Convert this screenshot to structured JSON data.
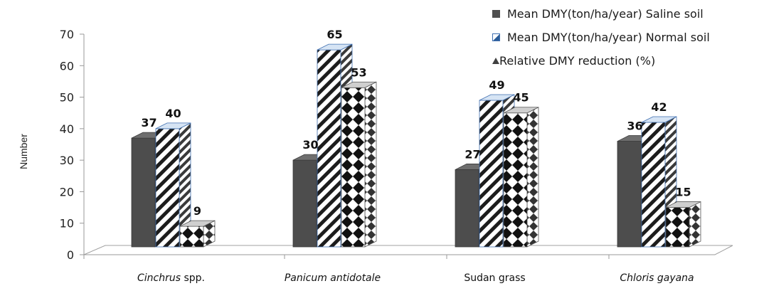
{
  "chart_data": {
    "type": "bar",
    "categories": [
      {
        "name": "Cinchrus",
        "suffix": " spp.",
        "italic": true
      },
      {
        "name": "Panicum antidotale",
        "suffix": "",
        "italic": true
      },
      {
        "name": "Sudan grass",
        "suffix": "",
        "italic": false
      },
      {
        "name": "Chloris gayana",
        "suffix": "",
        "italic": true
      }
    ],
    "series": [
      {
        "name": "Mean DMY(ton/ha/year) Saline soil",
        "values": [
          37,
          30,
          27,
          36
        ],
        "color": "#505050",
        "pattern": "solid"
      },
      {
        "name": "Mean DMY(ton/ha/year) Normal soil",
        "values": [
          40,
          65,
          49,
          42
        ],
        "color": "#3f6fb0",
        "pattern": "diagonal-stripes"
      },
      {
        "name": "Relative DMY reduction (%)",
        "values": [
          9,
          53,
          45,
          15
        ],
        "color": "#202020",
        "pattern": "diamond-checker"
      }
    ],
    "ylabel": "Number",
    "xlabel": "",
    "title": "",
    "ylim": [
      0,
      70
    ],
    "yticks": [
      0,
      10,
      20,
      30,
      40,
      50,
      60,
      70
    ],
    "legend_position": "top-right",
    "grid": false,
    "style": "3d-clustered-column"
  }
}
